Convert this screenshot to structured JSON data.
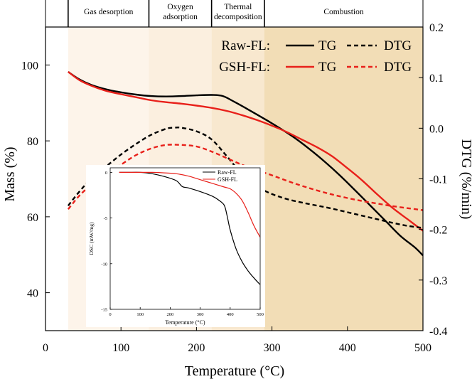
{
  "chart_data": {
    "type": "line",
    "main": {
      "xlabel": "Temperature (°C)",
      "ylabel_left": "Mass (%)",
      "ylabel_right": "DTG (%/min)",
      "xlim": [
        0,
        500
      ],
      "ylim_left": [
        30,
        110
      ],
      "ylim_right": [
        -0.4,
        0.2
      ],
      "xticks": [
        "0",
        "100",
        "200",
        "300",
        "400",
        "500"
      ],
      "yticks_left": [
        "40",
        "60",
        "80",
        "100"
      ],
      "yticks_right": [
        "-0.4",
        "-0.3",
        "-0.2",
        "-0.1",
        "0.0",
        "0.1",
        "0.2"
      ],
      "stages": [
        {
          "label": "Gas desorption",
          "from": 30,
          "to": 137
        },
        {
          "label": "Oxygen adsorption",
          "from": 137,
          "to": 220
        },
        {
          "label": "Thermal decomposition",
          "from": 220,
          "to": 290
        },
        {
          "label": "Combustion",
          "from": 290,
          "to": 500
        }
      ],
      "legend": {
        "rows": [
          {
            "sample": "Raw-FL:",
            "color": "#000000",
            "tg_label": "TG",
            "dtg_label": "DTG"
          },
          {
            "sample": "GSH-FL:",
            "color": "#e8201a",
            "tg_label": "TG",
            "dtg_label": "DTG"
          }
        ]
      },
      "series": [
        {
          "name": "Raw-FL TG",
          "axis": "left",
          "color": "#000000",
          "dash": false,
          "x": [
            30,
            45,
            60,
            80,
            100,
            120,
            140,
            160,
            180,
            200,
            220,
            235,
            250,
            270,
            290,
            310,
            330,
            350,
            370,
            390,
            410,
            430,
            450,
            470,
            490,
            500
          ],
          "y": [
            98.2,
            96.2,
            94.8,
            93.6,
            92.8,
            92.2,
            91.8,
            91.7,
            91.8,
            92.0,
            92.1,
            91.8,
            90.3,
            88.1,
            85.8,
            83.4,
            80.8,
            77.8,
            74.5,
            70.9,
            67.0,
            63.0,
            59.0,
            55.0,
            51.8,
            49.8
          ]
        },
        {
          "name": "GSH-FL TG",
          "axis": "left",
          "color": "#e8201a",
          "dash": false,
          "x": [
            30,
            45,
            60,
            80,
            100,
            120,
            140,
            160,
            180,
            200,
            220,
            240,
            260,
            280,
            300,
            320,
            340,
            360,
            380,
            400,
            420,
            440,
            460,
            480,
            500
          ],
          "y": [
            98.2,
            96.0,
            94.6,
            93.2,
            92.3,
            91.5,
            90.7,
            90.2,
            89.8,
            89.3,
            88.7,
            87.9,
            86.8,
            85.5,
            84.0,
            82.3,
            80.3,
            78.3,
            75.9,
            72.8,
            69.5,
            65.8,
            62.3,
            59.3,
            56.3
          ]
        },
        {
          "name": "Raw-FL DTG",
          "axis": "right",
          "color": "#000000",
          "dash": true,
          "x": [
            30,
            45,
            60,
            80,
            100,
            120,
            140,
            160,
            170,
            180,
            200,
            220,
            240,
            260,
            280,
            300,
            320,
            340,
            360,
            380,
            400,
            420,
            440,
            460,
            480,
            500
          ],
          "y": [
            -0.153,
            -0.125,
            -0.101,
            -0.076,
            -0.052,
            -0.031,
            -0.013,
            -0.001,
            0.001,
            0.001,
            -0.006,
            -0.022,
            -0.055,
            -0.09,
            -0.115,
            -0.13,
            -0.14,
            -0.147,
            -0.153,
            -0.159,
            -0.166,
            -0.173,
            -0.18,
            -0.187,
            -0.193,
            -0.197
          ]
        },
        {
          "name": "GSH-FL DTG",
          "axis": "right",
          "color": "#e8201a",
          "dash": true,
          "x": [
            30,
            45,
            60,
            80,
            100,
            120,
            140,
            160,
            180,
            200,
            220,
            240,
            260,
            280,
            300,
            320,
            340,
            360,
            380,
            400,
            420,
            440,
            460,
            480,
            500
          ],
          "y": [
            -0.16,
            -0.133,
            -0.113,
            -0.091,
            -0.072,
            -0.053,
            -0.04,
            -0.033,
            -0.033,
            -0.036,
            -0.046,
            -0.059,
            -0.072,
            -0.083,
            -0.093,
            -0.104,
            -0.114,
            -0.123,
            -0.131,
            -0.138,
            -0.144,
            -0.149,
            -0.154,
            -0.158,
            -0.162
          ]
        }
      ]
    },
    "inset": {
      "xlabel": "Temperature (°C)",
      "ylabel": "DSC (mW/mg)",
      "xlim": [
        0,
        500
      ],
      "ylim": [
        -15,
        0.5
      ],
      "xticks": [
        "0",
        "100",
        "200",
        "300",
        "400",
        "500"
      ],
      "yticks": [
        "0",
        "-5",
        "-10",
        "-15"
      ],
      "legend": [
        "Raw-FL",
        "GSH-FL"
      ],
      "series": [
        {
          "name": "Raw-FL",
          "color": "#000000",
          "x": [
            30,
            60,
            100,
            140,
            180,
            220,
            240,
            260,
            300,
            340,
            360,
            380,
            390,
            400,
            420,
            440,
            460,
            480,
            500
          ],
          "y": [
            0.0,
            0.0,
            0.0,
            -0.15,
            -0.45,
            -0.9,
            -1.55,
            -1.7,
            -2.1,
            -2.6,
            -3.0,
            -3.6,
            -4.8,
            -6.3,
            -8.4,
            -9.8,
            -10.8,
            -11.6,
            -12.3
          ]
        },
        {
          "name": "GSH-FL",
          "color": "#e8201a",
          "x": [
            30,
            60,
            100,
            140,
            180,
            220,
            260,
            300,
            340,
            380,
            400,
            420,
            440,
            460,
            480,
            500
          ],
          "y": [
            0.0,
            0.0,
            0.0,
            0.0,
            -0.05,
            -0.15,
            -0.4,
            -0.8,
            -1.2,
            -1.6,
            -1.8,
            -2.3,
            -3.1,
            -4.4,
            -5.9,
            -7.1
          ]
        }
      ]
    }
  }
}
